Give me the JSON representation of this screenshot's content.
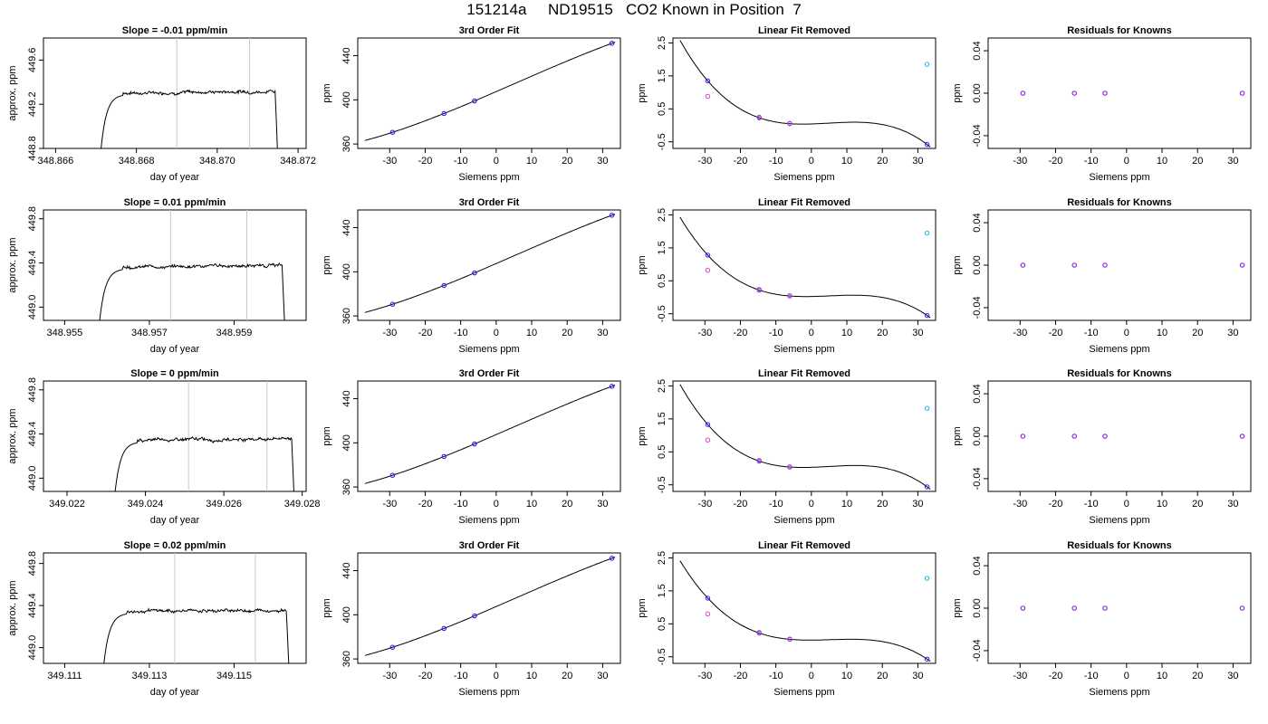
{
  "title": "151214a     ND19515   CO2 Known in Position  7",
  "colors": {
    "axis": "#000000",
    "vline": "#c8c8c8",
    "curve": "#000000",
    "blue": "#1f1fff",
    "purple": "#8a2be2",
    "magenta": "#d040d0",
    "cyan": "#10b8e8"
  },
  "fit_x": [
    -29.2,
    -14.7,
    -6.1,
    32.6
  ],
  "chart_data": [
    {
      "type": "line",
      "title": "Slope =  -0.01  ppm/min",
      "xlabel": "day of year",
      "ylabel": "approx. ppm",
      "xlim": [
        348.8657,
        348.8722
      ],
      "ylim": [
        448.8,
        449.8
      ],
      "xticks": [
        348.866,
        348.868,
        348.87,
        348.872
      ],
      "xtick_labels": [
        "348.866",
        "348.868",
        "348.870",
        "348.872"
      ],
      "yticks": [
        448.8,
        449.2,
        449.6
      ],
      "ytick_labels": [
        "448.8",
        "449.2",
        "449.6"
      ],
      "vlines": [
        348.869,
        348.8708
      ],
      "series": [
        {
          "x_start": 348.8671,
          "x_end": 348.8715,
          "plateau": 449.31
        }
      ]
    },
    {
      "type": "scatter",
      "title": "3rd Order Fit",
      "xlabel": "Siemens ppm",
      "ylabel": "ppm",
      "xlim": [
        -39,
        35
      ],
      "ylim": [
        356,
        456
      ],
      "xticks": [
        -30,
        -20,
        -10,
        0,
        10,
        20,
        30
      ],
      "xtick_labels": [
        "-30",
        "-20",
        "-10",
        "0",
        "10",
        "20",
        "30"
      ],
      "yticks": [
        360,
        400,
        440
      ],
      "ytick_labels": [
        "360",
        "400",
        "440"
      ],
      "x": [
        -29.2,
        -14.7,
        -6.1,
        32.6
      ],
      "y": [
        370.6,
        387.6,
        399.0,
        451.2
      ]
    },
    {
      "type": "scatter",
      "title": "Linear Fit Removed",
      "xlabel": "Siemens ppm",
      "ylabel": "ppm",
      "xlim": [
        -39,
        35
      ],
      "ylim": [
        -0.7,
        2.65
      ],
      "xticks": [
        -30,
        -20,
        -10,
        0,
        10,
        20,
        30
      ],
      "xtick_labels": [
        "-30",
        "-20",
        "-10",
        "0",
        "10",
        "20",
        "30"
      ],
      "yticks": [
        -0.5,
        0.5,
        1.5,
        2.5
      ],
      "ytick_labels": [
        "-0.5",
        "0.5",
        "1.5",
        "2.5"
      ],
      "y_fit": [
        1.35,
        0.23,
        0.05,
        -0.58
      ],
      "y_raw": [
        0.88,
        0.25,
        0.06,
        1.85
      ]
    },
    {
      "type": "scatter",
      "title": "Residuals for Knowns",
      "xlabel": "Siemens ppm",
      "ylabel": "ppm",
      "xlim": [
        -39,
        35
      ],
      "ylim": [
        -0.052,
        0.052
      ],
      "xticks": [
        -30,
        -20,
        -10,
        0,
        10,
        20,
        30
      ],
      "xtick_labels": [
        "-30",
        "-20",
        "-10",
        "0",
        "10",
        "20",
        "30"
      ],
      "yticks": [
        -0.04,
        0.0,
        0.04
      ],
      "ytick_labels": [
        "-0.04",
        "0.00",
        "0.04"
      ],
      "y": [
        0,
        0,
        0,
        0
      ]
    },
    {
      "type": "line",
      "title": "Slope =  0.01  ppm/min",
      "xlabel": "day of year",
      "ylabel": "approx. ppm",
      "xlim": [
        348.9545,
        348.9607
      ],
      "ylim": [
        448.88,
        449.88
      ],
      "xticks": [
        348.955,
        348.957,
        348.959
      ],
      "xtick_labels": [
        "348.955",
        "348.957",
        "348.959"
      ],
      "yticks": [
        449.0,
        449.4,
        449.8
      ],
      "ytick_labels": [
        "449.0",
        "449.4",
        "449.8"
      ],
      "vlines": [
        348.9575,
        348.9593
      ],
      "series": [
        {
          "x_start": 348.9558,
          "x_end": 348.9602,
          "plateau": 449.37
        }
      ]
    },
    {
      "type": "scatter",
      "title": "3rd Order Fit",
      "xlabel": "Siemens ppm",
      "ylabel": "ppm",
      "xlim": [
        -39,
        35
      ],
      "ylim": [
        356,
        456
      ],
      "xticks": [
        -30,
        -20,
        -10,
        0,
        10,
        20,
        30
      ],
      "xtick_labels": [
        "-30",
        "-20",
        "-10",
        "0",
        "10",
        "20",
        "30"
      ],
      "yticks": [
        360,
        400,
        440
      ],
      "ytick_labels": [
        "360",
        "400",
        "440"
      ],
      "x": [
        -29.2,
        -14.7,
        -6.1,
        32.6
      ],
      "y": [
        370.6,
        387.6,
        399.0,
        451.2
      ]
    },
    {
      "type": "scatter",
      "title": "Linear Fit Removed",
      "xlabel": "Siemens ppm",
      "ylabel": "ppm",
      "xlim": [
        -39,
        35
      ],
      "ylim": [
        -0.7,
        2.65
      ],
      "xticks": [
        -30,
        -20,
        -10,
        0,
        10,
        20,
        30
      ],
      "xtick_labels": [
        "-30",
        "-20",
        "-10",
        "0",
        "10",
        "20",
        "30"
      ],
      "yticks": [
        -0.5,
        0.5,
        1.5,
        2.5
      ],
      "ytick_labels": [
        "-0.5",
        "0.5",
        "1.5",
        "2.5"
      ],
      "y_fit": [
        1.28,
        0.22,
        0.04,
        -0.55
      ],
      "y_raw": [
        0.82,
        0.24,
        0.05,
        1.95
      ]
    },
    {
      "type": "scatter",
      "title": "Residuals for Knowns",
      "xlabel": "Siemens ppm",
      "ylabel": "ppm",
      "xlim": [
        -39,
        35
      ],
      "ylim": [
        -0.052,
        0.052
      ],
      "xticks": [
        -30,
        -20,
        -10,
        0,
        10,
        20,
        30
      ],
      "xtick_labels": [
        "-30",
        "-20",
        "-10",
        "0",
        "10",
        "20",
        "30"
      ],
      "yticks": [
        -0.04,
        0.0,
        0.04
      ],
      "ytick_labels": [
        "-0.04",
        "0.00",
        "0.04"
      ],
      "y": [
        0,
        0,
        0,
        0
      ]
    },
    {
      "type": "line",
      "title": "Slope =  0  ppm/min",
      "xlabel": "day of year",
      "ylabel": "approx. ppm",
      "xlim": [
        349.0214,
        349.0281
      ],
      "ylim": [
        448.88,
        449.88
      ],
      "xticks": [
        349.022,
        349.024,
        349.026,
        349.028
      ],
      "xtick_labels": [
        "349.022",
        "349.024",
        "349.026",
        "349.028"
      ],
      "yticks": [
        449.0,
        449.4,
        449.8
      ],
      "ytick_labels": [
        "449.0",
        "449.4",
        "449.8"
      ],
      "vlines": [
        349.0251,
        349.0271
      ],
      "series": [
        {
          "x_start": 349.0232,
          "x_end": 349.0278,
          "plateau": 449.35
        }
      ]
    },
    {
      "type": "scatter",
      "title": "3rd Order Fit",
      "xlabel": "Siemens ppm",
      "ylabel": "ppm",
      "xlim": [
        -39,
        35
      ],
      "ylim": [
        356,
        456
      ],
      "xticks": [
        -30,
        -20,
        -10,
        0,
        10,
        20,
        30
      ],
      "xtick_labels": [
        "-30",
        "-20",
        "-10",
        "0",
        "10",
        "20",
        "30"
      ],
      "yticks": [
        360,
        400,
        440
      ],
      "ytick_labels": [
        "360",
        "400",
        "440"
      ],
      "x": [
        -29.2,
        -14.7,
        -6.1,
        32.6
      ],
      "y": [
        370.6,
        387.6,
        399.0,
        451.2
      ]
    },
    {
      "type": "scatter",
      "title": "Linear Fit Removed",
      "xlabel": "Siemens ppm",
      "ylabel": "ppm",
      "xlim": [
        -39,
        35
      ],
      "ylim": [
        -0.7,
        2.65
      ],
      "xticks": [
        -30,
        -20,
        -10,
        0,
        10,
        20,
        30
      ],
      "xtick_labels": [
        "-30",
        "-20",
        "-10",
        "0",
        "10",
        "20",
        "30"
      ],
      "yticks": [
        -0.5,
        0.5,
        1.5,
        2.5
      ],
      "ytick_labels": [
        "-0.5",
        "0.5",
        "1.5",
        "2.5"
      ],
      "y_fit": [
        1.33,
        0.22,
        0.04,
        -0.56
      ],
      "y_raw": [
        0.86,
        0.24,
        0.05,
        1.82
      ]
    },
    {
      "type": "scatter",
      "title": "Residuals for Knowns",
      "xlabel": "Siemens ppm",
      "ylabel": "ppm",
      "xlim": [
        -39,
        35
      ],
      "ylim": [
        -0.052,
        0.052
      ],
      "xticks": [
        -30,
        -20,
        -10,
        0,
        10,
        20,
        30
      ],
      "xtick_labels": [
        "-30",
        "-20",
        "-10",
        "0",
        "10",
        "20",
        "30"
      ],
      "yticks": [
        -0.04,
        0.0,
        0.04
      ],
      "ytick_labels": [
        "-0.04",
        "0.00",
        "0.04"
      ],
      "y": [
        0,
        0,
        0,
        0
      ]
    },
    {
      "type": "line",
      "title": "Slope =  0.02  ppm/min",
      "xlabel": "day of year",
      "ylabel": "approx. ppm",
      "xlim": [
        349.1105,
        349.1167
      ],
      "ylim": [
        448.85,
        449.9
      ],
      "xticks": [
        349.111,
        349.113,
        349.115
      ],
      "xtick_labels": [
        "349.111",
        "349.113",
        "349.115"
      ],
      "yticks": [
        449.0,
        449.4,
        449.8
      ],
      "ytick_labels": [
        "449.0",
        "449.4",
        "449.8"
      ],
      "vlines": [
        349.1136,
        349.1155
      ],
      "series": [
        {
          "x_start": 349.1119,
          "x_end": 349.1163,
          "plateau": 449.35
        }
      ]
    },
    {
      "type": "scatter",
      "title": "3rd Order Fit",
      "xlabel": "Siemens ppm",
      "ylabel": "ppm",
      "xlim": [
        -39,
        35
      ],
      "ylim": [
        356,
        456
      ],
      "xticks": [
        -30,
        -20,
        -10,
        0,
        10,
        20,
        30
      ],
      "xtick_labels": [
        "-30",
        "-20",
        "-10",
        "0",
        "10",
        "20",
        "30"
      ],
      "yticks": [
        360,
        400,
        440
      ],
      "ytick_labels": [
        "360",
        "400",
        "440"
      ],
      "x": [
        -29.2,
        -14.7,
        -6.1,
        32.6
      ],
      "y": [
        370.6,
        387.6,
        399.0,
        451.2
      ]
    },
    {
      "type": "scatter",
      "title": "Linear Fit Removed",
      "xlabel": "Siemens ppm",
      "ylabel": "ppm",
      "xlim": [
        -39,
        35
      ],
      "ylim": [
        -0.7,
        2.65
      ],
      "xticks": [
        -30,
        -20,
        -10,
        0,
        10,
        20,
        30
      ],
      "xtick_labels": [
        "-30",
        "-20",
        "-10",
        "0",
        "10",
        "20",
        "30"
      ],
      "yticks": [
        -0.5,
        0.5,
        1.5,
        2.5
      ],
      "ytick_labels": [
        "-0.5",
        "0.5",
        "1.5",
        "2.5"
      ],
      "y_fit": [
        1.28,
        0.22,
        0.03,
        -0.57
      ],
      "y_raw": [
        0.8,
        0.24,
        0.04,
        1.88
      ]
    },
    {
      "type": "scatter",
      "title": "Residuals for Knowns",
      "xlabel": "Siemens ppm",
      "ylabel": "ppm",
      "xlim": [
        -39,
        35
      ],
      "ylim": [
        -0.052,
        0.052
      ],
      "xticks": [
        -30,
        -20,
        -10,
        0,
        10,
        20,
        30
      ],
      "xtick_labels": [
        "-30",
        "-20",
        "-10",
        "0",
        "10",
        "20",
        "30"
      ],
      "yticks": [
        -0.04,
        0.0,
        0.04
      ],
      "ytick_labels": [
        "-0.04",
        "0.00",
        "0.04"
      ],
      "y": [
        0,
        0,
        0,
        0
      ]
    }
  ]
}
